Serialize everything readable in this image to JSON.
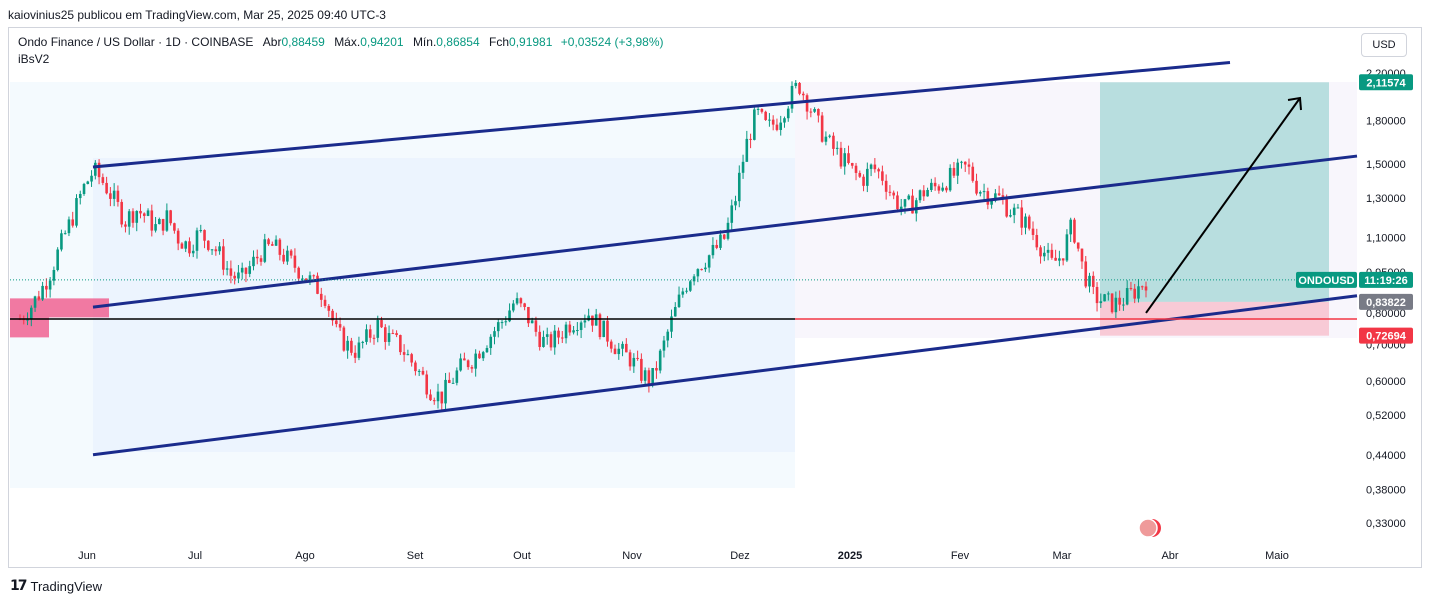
{
  "header": {
    "publisher": "kaiovinius25 publicou em TradingView.com, Mar 25, 2025 09:40 UTC-3"
  },
  "legend": {
    "symbol": "Ondo Finance / US Dollar · 1D · COINBASE",
    "open_label": "Abr",
    "open_value": "0,88459",
    "high_label": "Máx.",
    "high_value": "0,94201",
    "low_label": "Mín.",
    "low_value": "0,86854",
    "close_label": "Fch",
    "close_value": "0,91981",
    "change": "+0,03524 (+3,98%)",
    "indicator": "iBsV2"
  },
  "currency_button": "USD",
  "footer": {
    "brand": "TradingView"
  },
  "colors": {
    "up": "#089981",
    "down": "#f23645",
    "channel": "#1a2b8c",
    "target": "#26a69a",
    "stop": "#f7a5b6",
    "zone": "#f06292"
  },
  "chart_data": {
    "type": "candlestick",
    "x_axis": {
      "ticks": [
        "Jun",
        "Jul",
        "Ago",
        "Set",
        "Out",
        "Nov",
        "Dez",
        "2025",
        "Fev",
        "Mar",
        "Abr",
        "Maio"
      ],
      "bold": [
        "2025"
      ]
    },
    "y_axis": {
      "scale": "log",
      "ticks": [
        "2,20000",
        "1,80000",
        "1,50000",
        "1,30000",
        "1,10000",
        "0,95000",
        "0,80000",
        "0,70000",
        "0,60000",
        "0,52000",
        "0,44000",
        "0,38000",
        "0,33000"
      ],
      "tick_values": [
        2.2,
        1.8,
        1.5,
        1.3,
        1.1,
        0.95,
        0.8,
        0.7,
        0.6,
        0.52,
        0.44,
        0.38,
        0.33
      ]
    },
    "price_labels": [
      {
        "text": "2,11574",
        "value": 2.11574,
        "kind": "target"
      },
      {
        "text": "ONDOUSD",
        "value": 0.91981,
        "kind": "symbol"
      },
      {
        "text": "11:19:26",
        "value": 0.91981,
        "kind": "countdown"
      },
      {
        "text": "0,83822",
        "value": 0.83822,
        "kind": "entry"
      },
      {
        "text": "0,72694",
        "value": 0.72694,
        "kind": "stop"
      }
    ],
    "path_closes": [
      0.78,
      0.82,
      0.88,
      0.96,
      1.08,
      1.2,
      1.35,
      1.46,
      1.38,
      1.28,
      1.18,
      1.24,
      1.2,
      1.14,
      1.2,
      1.1,
      1.06,
      1.12,
      1.08,
      1.02,
      0.94,
      0.92,
      0.98,
      1.04,
      1.06,
      1.02,
      0.98,
      0.94,
      0.9,
      0.86,
      0.74,
      0.7,
      0.68,
      0.72,
      0.76,
      0.72,
      0.7,
      0.66,
      0.62,
      0.58,
      0.56,
      0.6,
      0.64,
      0.66,
      0.7,
      0.74,
      0.78,
      0.84,
      0.8,
      0.74,
      0.7,
      0.72,
      0.76,
      0.78,
      0.8,
      0.76,
      0.72,
      0.68,
      0.66,
      0.62,
      0.6,
      0.68,
      0.78,
      0.88,
      0.96,
      1.0,
      1.04,
      1.1,
      1.3,
      1.62,
      1.86,
      1.74,
      1.8,
      1.96,
      2.1,
      1.92,
      1.74,
      1.62,
      1.54,
      1.46,
      1.4,
      1.48,
      1.42,
      1.3,
      1.24,
      1.28,
      1.34,
      1.36,
      1.4,
      1.44,
      1.48,
      1.36,
      1.32,
      1.3,
      1.24,
      1.2,
      1.14,
      1.06,
      0.98,
      1.02,
      1.16,
      0.96,
      0.86,
      0.84,
      0.83,
      0.85,
      0.88,
      0.92
    ],
    "path_start_month": "May 2024",
    "path_end": "Mar 25, 2025",
    "channel": {
      "upper_start": 1.48,
      "upper_end": 2.3,
      "mid_start": 0.82,
      "mid_end": 1.55,
      "lower_start": 0.44,
      "lower_end": 0.86
    },
    "horizontal_level": 0.78,
    "position": {
      "entry": 0.83822,
      "target": 2.11574,
      "stop": 0.72694
    },
    "zone": {
      "top": 0.84,
      "bottom": 0.68
    }
  }
}
